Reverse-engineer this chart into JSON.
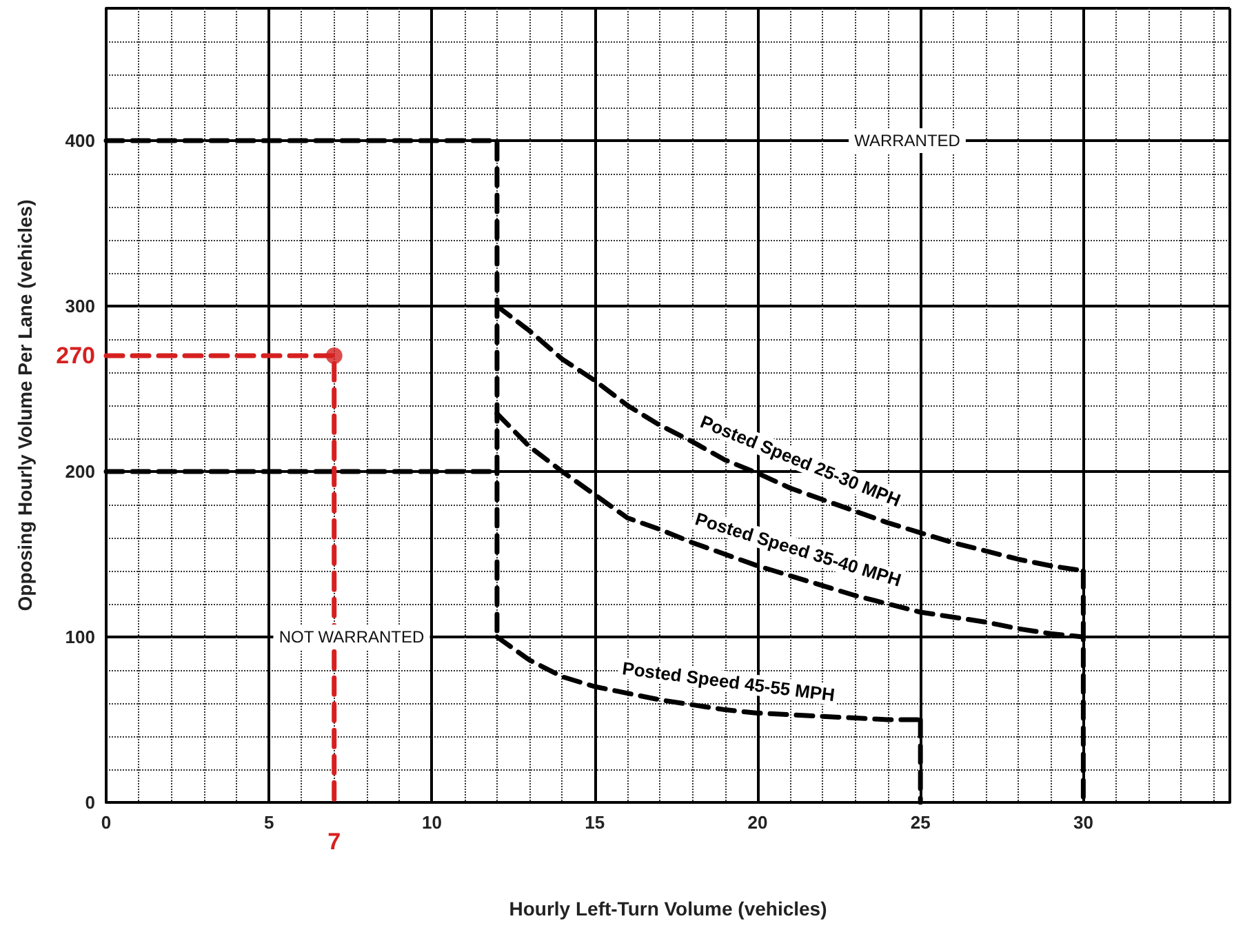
{
  "chart_data": {
    "type": "line",
    "xlabel": "Hourly Left-Turn Volume (vehicles)",
    "ylabel": "Opposing Hourly Volume Per Lane (vehicles)",
    "xlim": [
      0,
      34.5
    ],
    "ylim": [
      0,
      480
    ],
    "xticks": [
      0,
      5,
      10,
      15,
      20,
      25,
      30
    ],
    "yticks": [
      0,
      100,
      200,
      300,
      400
    ],
    "grid": true,
    "legend": false,
    "marker": "none",
    "line_style": "dashed",
    "series": [
      {
        "name": "Posted Speed 25-30 MPH",
        "color": "#000000",
        "x": [
          12,
          13,
          14,
          15,
          16,
          17,
          18,
          19,
          20,
          21,
          22,
          23,
          24,
          25,
          26,
          27,
          28,
          29,
          30
        ],
        "values": [
          300,
          285,
          268,
          255,
          240,
          228,
          218,
          207,
          199,
          190,
          183,
          176,
          169,
          163,
          157,
          152,
          147,
          143,
          140
        ]
      },
      {
        "name": "Posted Speed 35-40 MPH",
        "color": "#000000",
        "x": [
          12,
          13,
          14,
          15,
          16,
          17,
          18,
          19,
          20,
          21,
          22,
          23,
          24,
          25,
          26,
          27,
          28,
          29,
          30
        ],
        "values": [
          235,
          215,
          200,
          186,
          172,
          165,
          157,
          150,
          143,
          137,
          131,
          125,
          120,
          115,
          112,
          109,
          105,
          102,
          100
        ]
      },
      {
        "name": "Posted Speed 45-55 MPH",
        "color": "#000000",
        "x": [
          12,
          13,
          14,
          15,
          16,
          17,
          18,
          19,
          20,
          21,
          22,
          23,
          24,
          25
        ],
        "values": [
          100,
          86,
          76,
          70,
          66,
          62,
          59,
          56,
          54,
          53,
          52,
          51,
          50,
          50
        ]
      },
      {
        "color": "#000000",
        "x": [
          0,
          12,
          12
        ],
        "values": [
          400,
          400,
          100
        ]
      },
      {
        "color": "#000000",
        "x": [
          0,
          12
        ],
        "values": [
          200,
          200
        ]
      },
      {
        "color": "#000000",
        "x": [
          30,
          30
        ],
        "values": [
          140,
          0
        ]
      },
      {
        "color": "#000000",
        "x": [
          25,
          25
        ],
        "values": [
          50,
          0
        ]
      },
      {
        "color": "#d62020",
        "x": [
          0,
          7,
          7
        ],
        "values": [
          270,
          270,
          0
        ]
      },
      {
        "type": "scatter",
        "marker": "circle",
        "color": "#d62020",
        "x": [
          7
        ],
        "values": [
          270
        ]
      }
    ],
    "annotations": [
      "WARRANTED",
      "NOT WARRANTED",
      {
        "text": "270",
        "x": 0,
        "y": 270
      },
      {
        "text": "7",
        "x": 7,
        "y": 0
      }
    ]
  }
}
